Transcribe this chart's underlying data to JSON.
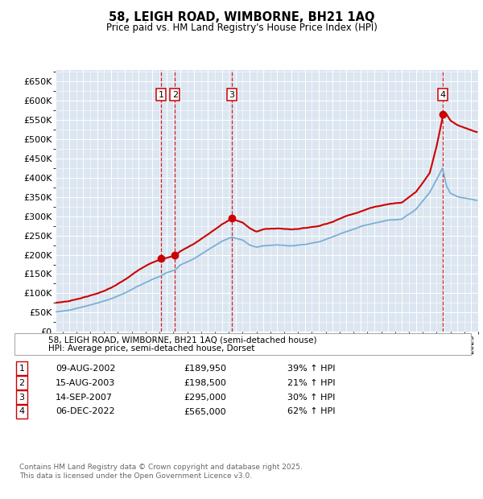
{
  "title": "58, LEIGH ROAD, WIMBORNE, BH21 1AQ",
  "subtitle": "Price paid vs. HM Land Registry's House Price Index (HPI)",
  "ylim": [
    0,
    680000
  ],
  "yticks": [
    0,
    50000,
    100000,
    150000,
    200000,
    250000,
    300000,
    350000,
    400000,
    450000,
    500000,
    550000,
    600000,
    650000
  ],
  "xlim_start": 1995.0,
  "xlim_end": 2025.5,
  "fig_bg_color": "#ffffff",
  "plot_bg_color": "#dce6f1",
  "grid_color": "#ffffff",
  "sale_color": "#cc0000",
  "hpi_color": "#7bafd4",
  "sales": [
    {
      "date_year": 2002.61,
      "price": 189950,
      "label": "1"
    },
    {
      "date_year": 2003.62,
      "price": 198500,
      "label": "2"
    },
    {
      "date_year": 2007.71,
      "price": 295000,
      "label": "3"
    },
    {
      "date_year": 2022.93,
      "price": 565000,
      "label": "4"
    }
  ],
  "legend_sale_label": "58, LEIGH ROAD, WIMBORNE, BH21 1AQ (semi-detached house)",
  "legend_hpi_label": "HPI: Average price, semi-detached house, Dorset",
  "table_rows": [
    {
      "num": "1",
      "date": "09-AUG-2002",
      "price": "£189,950",
      "hpi": "39% ↑ HPI"
    },
    {
      "num": "2",
      "date": "15-AUG-2003",
      "price": "£198,500",
      "hpi": "21% ↑ HPI"
    },
    {
      "num": "3",
      "date": "14-SEP-2007",
      "price": "£295,000",
      "hpi": "30% ↑ HPI"
    },
    {
      "num": "4",
      "date": "06-DEC-2022",
      "price": "£565,000",
      "hpi": "62% ↑ HPI"
    }
  ],
  "footer": "Contains HM Land Registry data © Crown copyright and database right 2025.\nThis data is licensed under the Open Government Licence v3.0."
}
